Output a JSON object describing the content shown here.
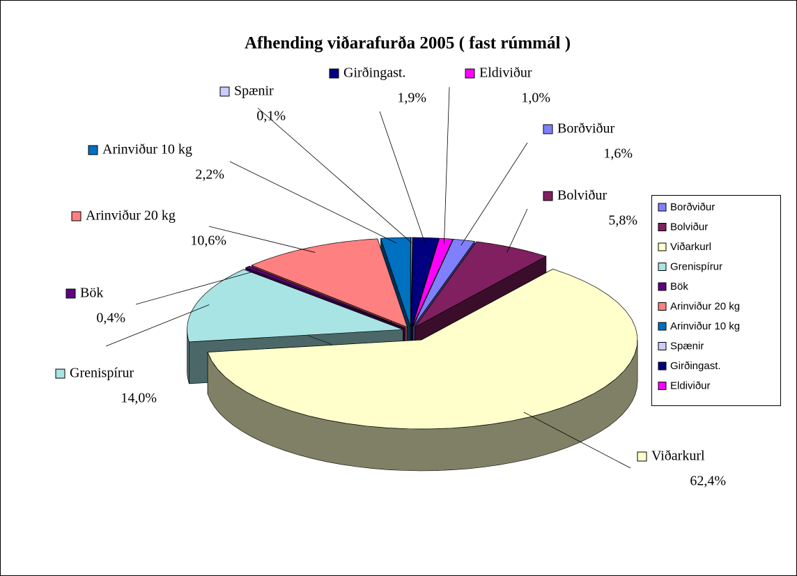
{
  "chart_data": {
    "type": "pie3d",
    "title": "Afhending viðarafurða 2005 ( fast rúmmál )",
    "categories": [
      "Borðviður",
      "Bolviður",
      "Viðarkurl",
      "Grenispírur",
      "Bök",
      "Arinviður 20 kg",
      "Arinviður 10 kg",
      "Spænir",
      "Girðingast.",
      "Eldiviður"
    ],
    "values": [
      1.6,
      5.8,
      62.4,
      14.0,
      0.4,
      10.6,
      2.2,
      0.1,
      1.9,
      1.0
    ],
    "value_labels": [
      "1,6%",
      "5,8%",
      "62,4%",
      "14,0%",
      "0,4%",
      "10,6%",
      "2,2%",
      "0,1%",
      "1,9%",
      "1,0%"
    ],
    "colors": [
      "#8080ff",
      "#802060",
      "#ffffcc",
      "#a8e4e4",
      "#600080",
      "#ff8080",
      "#0070c0",
      "#ccccff",
      "#000080",
      "#ff00ff"
    ],
    "legend": "right"
  }
}
